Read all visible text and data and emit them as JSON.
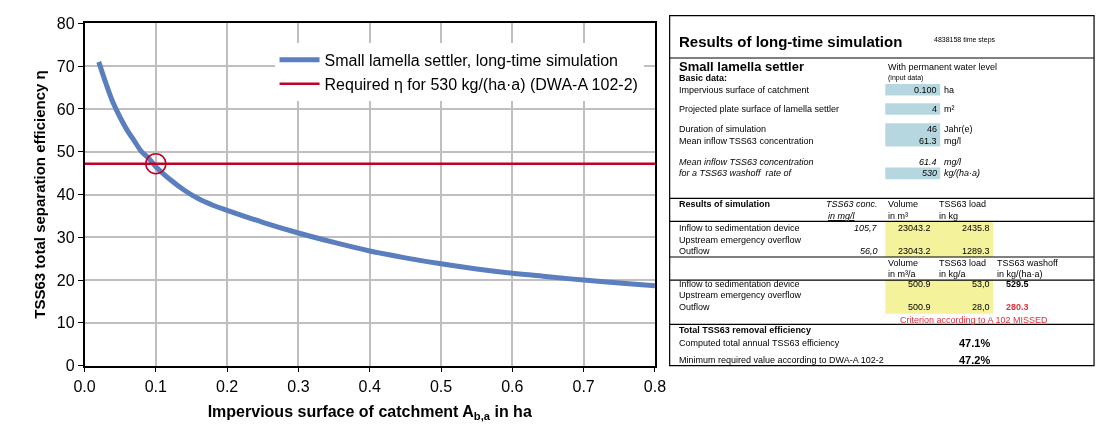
{
  "chart_data": [
    {
      "type": "line",
      "xlabel": "Impervious surface of catchment A$_{b,a}$ in ha",
      "ylabel": "TSS63 total separation efficiency η",
      "xlim": [
        0.0,
        0.8
      ],
      "xticks": [
        {
          "value": 0,
          "label": "0.0"
        },
        0.1,
        0.2,
        0.3,
        0.4,
        0.5,
        0.6,
        0.7,
        0.8
      ],
      "ylim": [
        0,
        80
      ],
      "yticks": [
        0,
        10,
        20,
        30,
        40,
        50,
        60,
        70,
        80
      ],
      "grid": true,
      "legend": "top right",
      "line_style": "solid",
      "series": [
        {
          "name": "Small lamella settler, long-time simulation",
          "color": "#5b7fbe",
          "x": [
            0.02,
            0.03,
            0.04,
            0.05,
            0.06,
            0.07,
            0.08,
            0.09,
            0.1,
            0.12,
            0.14,
            0.16,
            0.18,
            0.2,
            0.25,
            0.3,
            0.35,
            0.4,
            0.45,
            0.5,
            0.55,
            0.6,
            0.65,
            0.7,
            0.75,
            0.8
          ],
          "values": [
            71,
            66,
            61.5,
            58,
            55,
            52.5,
            50,
            48.5,
            46.5,
            43.5,
            41,
            39,
            37.5,
            36.3,
            33.5,
            31,
            28.8,
            26.8,
            25.2,
            23.8,
            22.6,
            21.6,
            20.8,
            20,
            19.3,
            18.7
          ]
        },
        {
          "type": "scatter",
          "marker": "circle",
          "color": "#c0002b",
          "x": [
            0.1
          ],
          "values": [
            47.2
          ]
        }
      ],
      "ref_lines": [
        {
          "axis": "y",
          "value": 47.2,
          "label": "Required η for 530 kg/(ha·a) (DWA-A 102-2)",
          "color": "#c0002b",
          "line_style": "solid"
        }
      ]
    },
    {
      "type": "other",
      "title": "Results of long-time simulation",
      "annotations": [
        "4838158 time steps",
        "Small lamella settler",
        "With permanent water level",
        "Basic data:",
        "(input data)",
        "Impervious surface of catchment",
        "0.100",
        "ha",
        "Projected plate surface of lamella settler",
        "4",
        "m²",
        "Duration of simulation",
        "46",
        "Jahr(e)",
        "Mean inflow TSS63 concentration",
        "61.3",
        "mg/l",
        "Mean inflow TSS63 concentration",
        "61.4",
        "mg/l",
        "for a TSS63 washoff  rate of",
        "530",
        "kg/(ha·a)",
        "Results of simulation",
        "TSS63 conc.",
        "Volume",
        "TSS63 load",
        "in mg/l",
        "in m³",
        "in kg",
        "Inflow to sedimentation device",
        "105,7",
        "23043.2",
        "2435.8",
        "Upstream emergency overflow",
        "Outflow",
        "56,0",
        "23043.2",
        "1289.3",
        "Volume",
        "TSS63 load",
        "TSS63 washoff",
        "in m³/a",
        "in kg/a",
        "in kg/(ha·a)",
        "Inflow to sedimentation device",
        "500.9",
        "53,0",
        "529.5",
        "Upstream emergency overflow",
        "Outflow",
        "500.9",
        "28,0",
        "280.3",
        "Criterion according to A 102 MISSED",
        "Total TSS63 removal efficiency",
        "Computed total annual TSS63 efficiency",
        "47.1%",
        "Minimum required value according to DWA-A 102-2",
        "47.2%"
      ]
    }
  ]
}
